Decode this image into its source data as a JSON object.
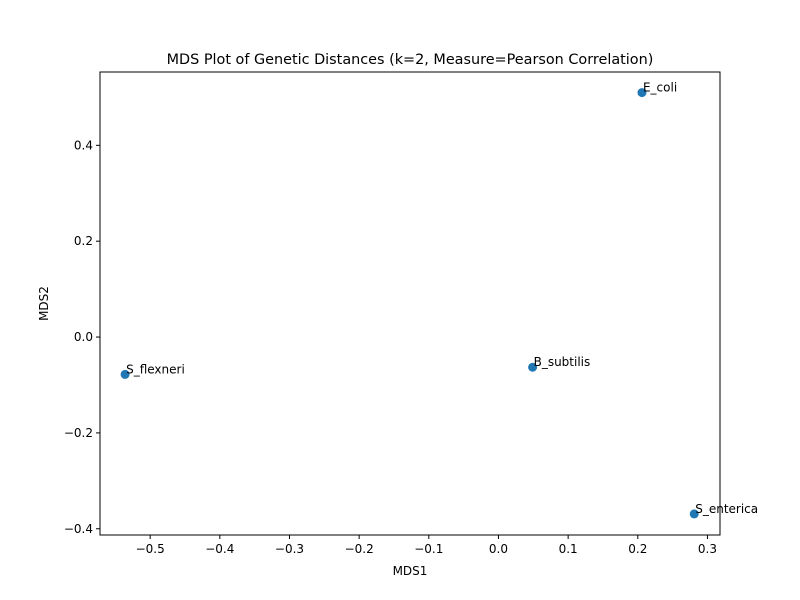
{
  "chart_data": {
    "type": "scatter",
    "title": "MDS Plot of Genetic Distances (k=2, Measure=Pearson Correlation)",
    "xlabel": "MDS1",
    "ylabel": "MDS2",
    "xlim": [
      -0.572,
      0.318
    ],
    "ylim": [
      -0.413,
      0.553
    ],
    "xticks": [
      -0.5,
      -0.4,
      -0.3,
      -0.2,
      -0.1,
      0.0,
      0.1,
      0.2,
      0.3
    ],
    "xtick_labels": [
      "−0.5",
      "−0.4",
      "−0.3",
      "−0.2",
      "−0.1",
      "0.0",
      "0.1",
      "0.2",
      "0.3"
    ],
    "yticks": [
      -0.4,
      -0.2,
      0.0,
      0.2,
      0.4
    ],
    "ytick_labels": [
      "−0.4",
      "−0.2",
      "0.0",
      "0.2",
      "0.4"
    ],
    "grid": false,
    "marker_color": "#1f77b4",
    "points": [
      {
        "label": "E_coli",
        "x": 0.206,
        "y": 0.51
      },
      {
        "label": "S_flexneri",
        "x": -0.536,
        "y": -0.078
      },
      {
        "label": "B_subtilis",
        "x": 0.049,
        "y": -0.063
      },
      {
        "label": "S_enterica",
        "x": 0.281,
        "y": -0.369
      }
    ]
  }
}
